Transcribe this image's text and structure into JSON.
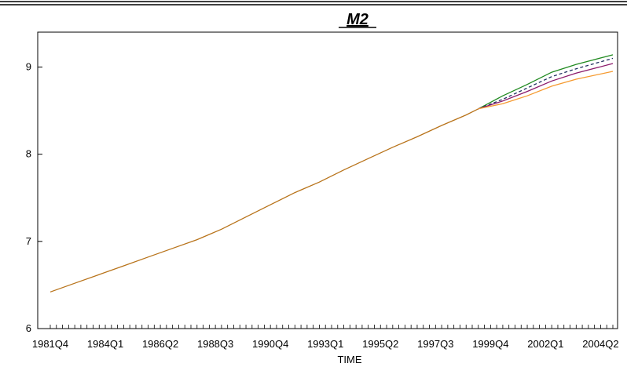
{
  "chart_data": {
    "type": "line",
    "title": "M2",
    "xlabel": "TIME",
    "ylabel": "",
    "ylim": [
      6,
      9.4
    ],
    "y_ticks": [
      6,
      7,
      8,
      9
    ],
    "x_tick_labels": [
      "1981Q4",
      "1984Q1",
      "1986Q2",
      "1988Q3",
      "1990Q4",
      "1993Q1",
      "1995Q2",
      "1997Q3",
      "1999Q4",
      "2002Q1",
      "2004Q2"
    ],
    "x_start": "1981Q4",
    "x_end": "2004Q4",
    "grid": false,
    "series": [
      {
        "color": "#b8731a",
        "style": "solid",
        "points": [
          [
            "1981Q4",
            6.42
          ],
          [
            "1982Q4",
            6.52
          ],
          [
            "1983Q4",
            6.62
          ],
          [
            "1984Q4",
            6.72
          ],
          [
            "1985Q4",
            6.82
          ],
          [
            "1986Q4",
            6.92
          ],
          [
            "1987Q4",
            7.02
          ],
          [
            "1988Q4",
            7.14
          ],
          [
            "1989Q4",
            7.28
          ],
          [
            "1990Q4",
            7.42
          ],
          [
            "1991Q4",
            7.56
          ],
          [
            "1992Q4",
            7.68
          ],
          [
            "1993Q4",
            7.82
          ],
          [
            "1994Q4",
            7.95
          ],
          [
            "1995Q4",
            8.08
          ],
          [
            "1996Q4",
            8.2
          ],
          [
            "1997Q4",
            8.33
          ],
          [
            "1998Q4",
            8.45
          ],
          [
            "1999Q2",
            8.52
          ]
        ]
      },
      {
        "color": "#208a20",
        "style": "solid",
        "points": [
          [
            "1999Q2",
            8.52
          ],
          [
            "2000Q2",
            8.67
          ],
          [
            "2001Q2",
            8.8
          ],
          [
            "2002Q2",
            8.94
          ],
          [
            "2003Q2",
            9.03
          ],
          [
            "2004Q4",
            9.14
          ]
        ]
      },
      {
        "color": "#203060",
        "style": "dashed",
        "points": [
          [
            "1999Q2",
            8.52
          ],
          [
            "2000Q2",
            8.63
          ],
          [
            "2001Q2",
            8.76
          ],
          [
            "2002Q2",
            8.89
          ],
          [
            "2003Q2",
            8.98
          ],
          [
            "2004Q4",
            9.1
          ]
        ]
      },
      {
        "color": "#8b1a6b",
        "style": "solid",
        "points": [
          [
            "1999Q2",
            8.52
          ],
          [
            "2000Q2",
            8.61
          ],
          [
            "2001Q2",
            8.72
          ],
          [
            "2002Q2",
            8.84
          ],
          [
            "2003Q2",
            8.93
          ],
          [
            "2004Q4",
            9.04
          ]
        ]
      },
      {
        "color": "#f59a30",
        "style": "solid",
        "points": [
          [
            "1999Q2",
            8.52
          ],
          [
            "2000Q2",
            8.58
          ],
          [
            "2001Q2",
            8.67
          ],
          [
            "2002Q2",
            8.78
          ],
          [
            "2003Q2",
            8.86
          ],
          [
            "2004Q4",
            8.95
          ]
        ]
      }
    ]
  }
}
